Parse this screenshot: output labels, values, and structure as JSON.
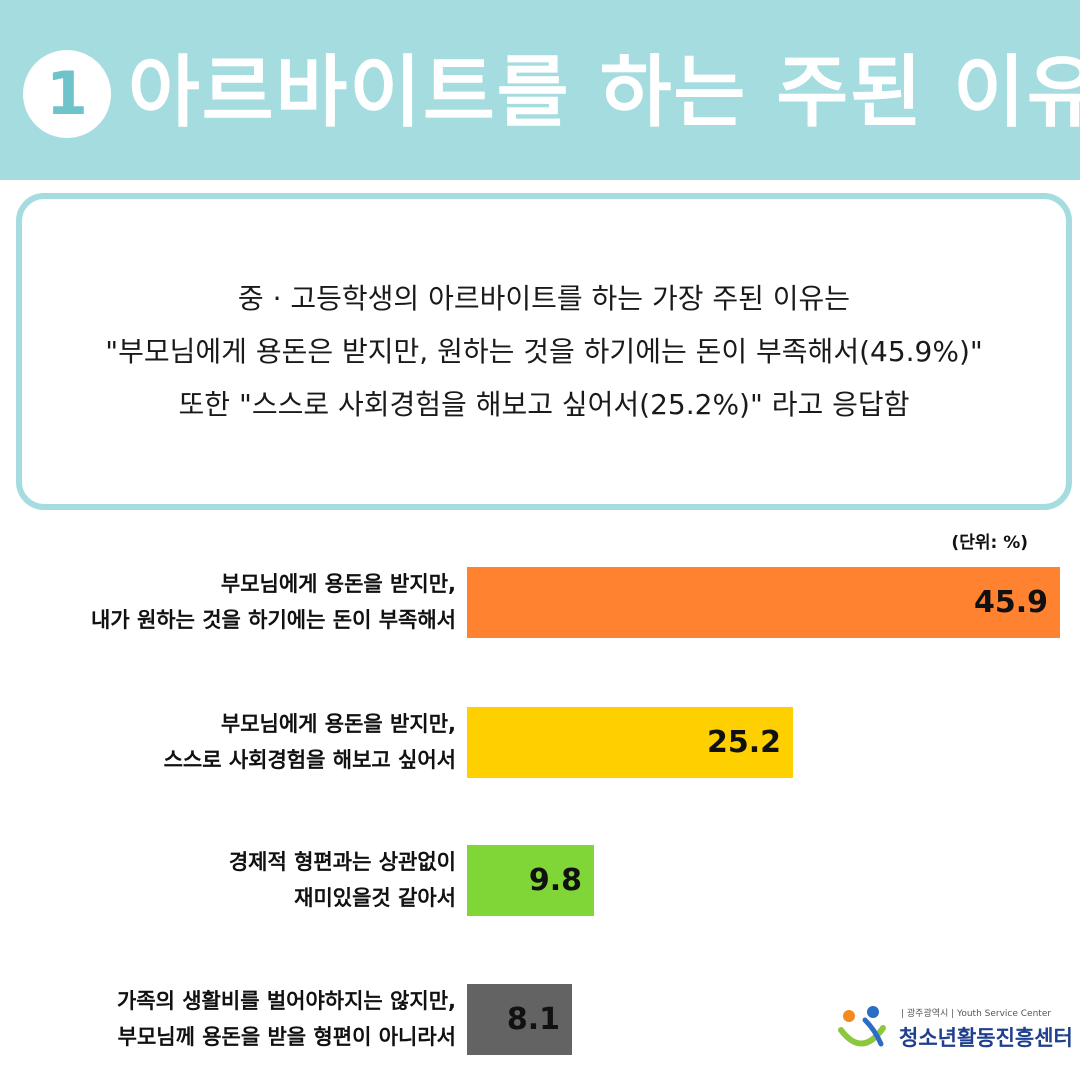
{
  "header": {
    "number": "1",
    "title": "아르바이트를 하는 주된 이유"
  },
  "summary": {
    "line1": "중 · 고등학생의 아르바이트를 하는 가장 주된 이유는",
    "line2": "\"부모님에게 용돈은 받지만, 원하는 것을 하기에는 돈이 부족해서(45.9%)\"",
    "line3": "또한 \"스스로 사회경험을 해보고 싶어서(25.2%)\" 라고 응답함"
  },
  "unit": "(단위: %)",
  "chart_data": {
    "type": "bar",
    "orientation": "horizontal",
    "categories": [
      [
        "부모님에게 용돈을 받지만,",
        "내가 원하는 것을 하기에는 돈이 부족해서"
      ],
      [
        "부모님에게 용돈을 받지만,",
        "스스로 사회경험을 해보고 싶어서"
      ],
      [
        "경제적 형편과는 상관없이",
        "재미있을것 같아서"
      ],
      [
        "가족의 생활비를 벌어야하지는 않지만,",
        "부모님께 용돈을 받을 형편이 아니라서"
      ]
    ],
    "values": [
      45.9,
      25.2,
      9.8,
      8.1
    ],
    "value_labels": [
      "45.9",
      "25.2",
      "9.8",
      "8.1"
    ],
    "colors": [
      "#fe8230",
      "#fed000",
      "#80d636",
      "#636363"
    ],
    "xlim": [
      0,
      45.9
    ],
    "grid": false,
    "legend": "none"
  },
  "logo": {
    "top_text": "| 광주광역시 | Youth Service Center",
    "main_text": "청소년활동진흥센터",
    "colors": [
      "#f28a1e",
      "#8dc63f",
      "#2b6cc4"
    ]
  }
}
